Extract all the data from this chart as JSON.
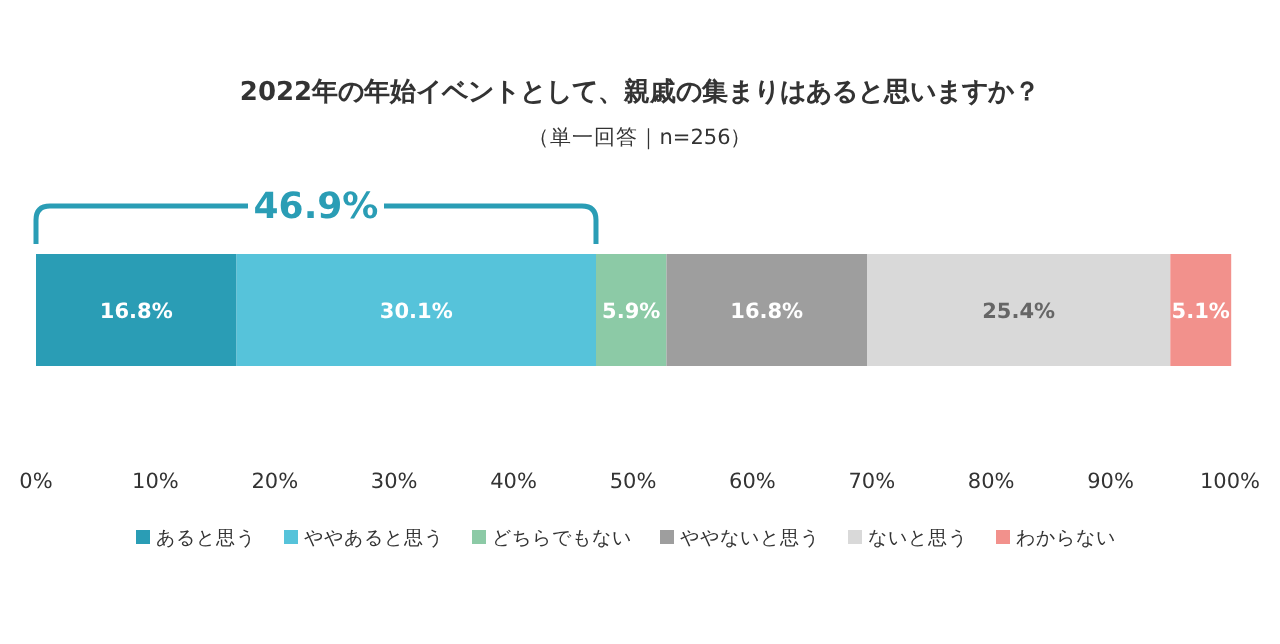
{
  "chart_data": {
    "type": "bar",
    "orientation": "horizontal",
    "stacked": true,
    "title": "2022年の年始イベントとして、親戚の集まりはあると思いますか？",
    "subtitle": "（単一回答｜n=256）",
    "categories": [
      null
    ],
    "series": [
      {
        "name": "あると思う",
        "color": "#2a9db5",
        "values": [
          16.8
        ],
        "value_labels": [
          "16.8%"
        ]
      },
      {
        "name": "ややあると思う",
        "color": "#56c3da",
        "values": [
          30.1
        ],
        "value_labels": [
          "30.1%"
        ]
      },
      {
        "name": "どちらでもない",
        "color": "#8ccaa6",
        "values": [
          5.9
        ],
        "value_labels": [
          "5.9%"
        ]
      },
      {
        "name": "ややないと思う",
        "color": "#9e9e9e",
        "values": [
          16.8
        ],
        "value_labels": [
          "16.8%"
        ]
      },
      {
        "name": "ないと思う",
        "color": "#d9d9d9",
        "values": [
          25.4
        ],
        "value_labels": [
          "25.4%"
        ]
      },
      {
        "name": "わからない",
        "color": "#f2918c",
        "values": [
          5.1
        ],
        "value_labels": [
          "5.1%"
        ]
      }
    ],
    "xlim": [
      0,
      100
    ],
    "xticks": [
      {
        "value": 0,
        "label": "0%"
      },
      {
        "value": 10,
        "label": "10%"
      },
      {
        "value": 20,
        "label": "20%"
      },
      {
        "value": 30,
        "label": "30%"
      },
      {
        "value": 40,
        "label": "40%"
      },
      {
        "value": 50,
        "label": "50%"
      },
      {
        "value": 60,
        "label": "60%"
      },
      {
        "value": 70,
        "label": "70%"
      },
      {
        "value": 80,
        "label": "80%"
      },
      {
        "value": 90,
        "label": "90%"
      },
      {
        "value": 100,
        "label": "100%"
      }
    ],
    "annotations": [
      "46.9%"
    ],
    "legend": "bottom"
  }
}
